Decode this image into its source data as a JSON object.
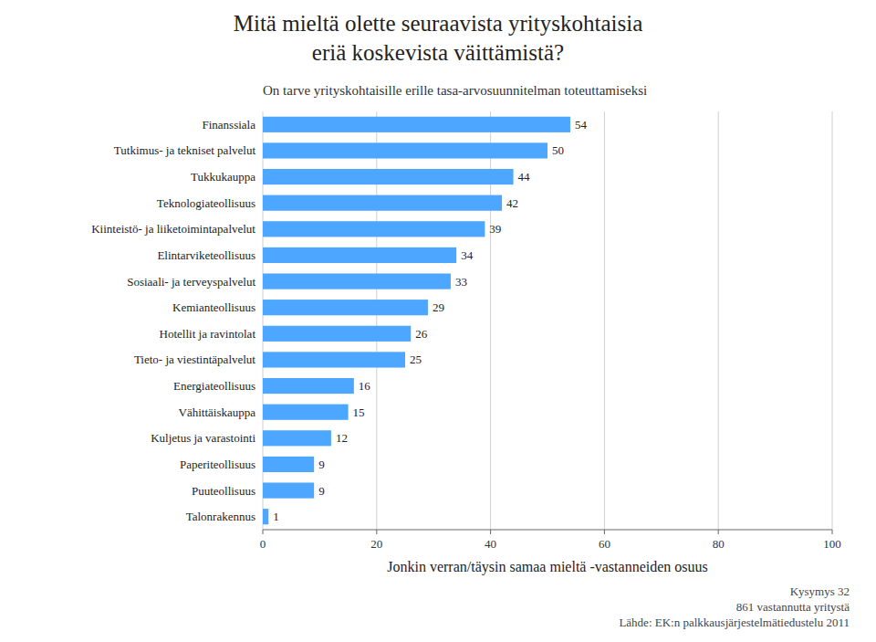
{
  "chart_data": {
    "type": "bar",
    "orientation": "horizontal",
    "title": [
      "Mitä mieltä olette seuraavista yrityskohtaisia",
      "eriä koskevista väittämistä?"
    ],
    "subtitle": "On tarve yrityskohtaisille erille tasa-arvosuunnitelman toteuttamiseksi",
    "categories": [
      "Finanssiala",
      "Tutkimus- ja tekniset palvelut",
      "Tukkukauppa",
      "Teknologiateollisuus",
      "Kiinteistö- ja liiketoimintapalvelut",
      "Elintarviketeollisuus",
      "Sosiaali- ja terveyspalvelut",
      "Kemianteollisuus",
      "Hotellit ja ravintolat",
      "Tieto- ja viestintäpalvelut",
      "Energiateollisuus",
      "Vähittäiskauppa",
      "Kuljetus ja varastointi",
      "Paperiteollisuus",
      "Puuteollisuus",
      "Talonrakennus"
    ],
    "values": [
      54,
      50,
      44,
      42,
      39,
      34,
      33,
      29,
      26,
      25,
      16,
      15,
      12,
      9,
      9,
      1
    ],
    "color": "#4da6ff",
    "xlabel": "Jonkin verran/täysin samaa mieltä -vastanneiden osuus",
    "xlim": [
      0,
      100
    ],
    "xticks": [
      0,
      20,
      40,
      60,
      80,
      100
    ],
    "grid": true,
    "data_labels": true,
    "annotations": [
      "Kysymys 32",
      "861 vastannutta yritystä",
      "Lähde: EK:n palkkausjärjestelmätiedustelu 2011"
    ]
  }
}
